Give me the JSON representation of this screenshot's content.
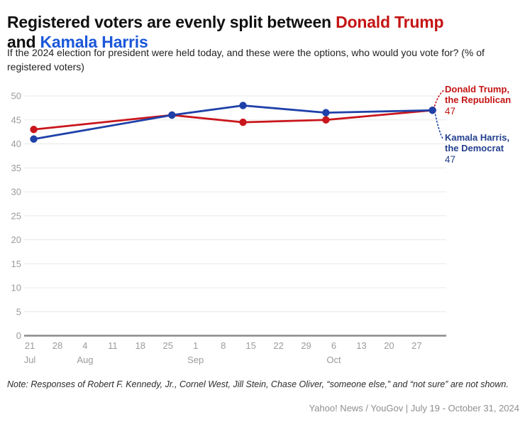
{
  "title": {
    "part1": "Registered voters are evenly split between ",
    "trump_name": "Donald Trump",
    "and_text": " and ",
    "harris_name": "Kamala Harris"
  },
  "subtitle": "If the 2024 election for president were held today, and these were the options, who would you vote for? (% of registered voters)",
  "colors": {
    "trump_line": "#c9161c",
    "harris_line": "#1e40a8",
    "title_red": "#c41414",
    "title_blue": "#1b57d9",
    "label_red": "#c41414",
    "label_blue": "#24408e",
    "gridline": "#e8e8e8",
    "axis": "#8a8a8a",
    "tick_text": "#9b9b9b"
  },
  "chart_data": {
    "type": "line",
    "title": "Registered voters are evenly split between Donald Trump and Kamala Harris",
    "xlabel": "",
    "ylabel": "% of registered voters",
    "ylim": [
      0,
      50
    ],
    "y_tick_step": 5,
    "y_tick_labels": [
      "0",
      "5",
      "10",
      "15",
      "20",
      "25",
      "30",
      "35",
      "40",
      "45",
      "50"
    ],
    "grid": true,
    "legend_position": "right-end-labels",
    "x_start": "2024-07-21",
    "x_ticks": [
      {
        "date": "2024-07-21",
        "label": "21",
        "month": "Jul"
      },
      {
        "date": "2024-07-28",
        "label": "28"
      },
      {
        "date": "2024-08-04",
        "label": "4",
        "month": "Aug"
      },
      {
        "date": "2024-08-11",
        "label": "11"
      },
      {
        "date": "2024-08-18",
        "label": "18"
      },
      {
        "date": "2024-08-25",
        "label": "25"
      },
      {
        "date": "2024-09-01",
        "label": "1",
        "month": "Sep"
      },
      {
        "date": "2024-09-08",
        "label": "8"
      },
      {
        "date": "2024-09-15",
        "label": "15"
      },
      {
        "date": "2024-09-22",
        "label": "22"
      },
      {
        "date": "2024-09-29",
        "label": "29"
      },
      {
        "date": "2024-10-06",
        "label": "6",
        "month": "Oct"
      },
      {
        "date": "2024-10-13",
        "label": "13"
      },
      {
        "date": "2024-10-20",
        "label": "20"
      },
      {
        "date": "2024-10-27",
        "label": "27"
      }
    ],
    "series": [
      {
        "name": "Donald Trump, the Republican",
        "color": "#c9161c",
        "dates": [
          "2024-07-22",
          "2024-08-26",
          "2024-09-13",
          "2024-10-04",
          "2024-10-31"
        ],
        "values": [
          43,
          46,
          44.5,
          45,
          47
        ]
      },
      {
        "name": "Kamala Harris, the Democrat",
        "color": "#1e40a8",
        "dates": [
          "2024-07-22",
          "2024-08-26",
          "2024-09-13",
          "2024-10-04",
          "2024-10-31"
        ],
        "values": [
          41,
          46,
          48,
          46.5,
          47
        ]
      }
    ]
  },
  "end_labels": {
    "trump": {
      "text": "Donald Trump, the Republican",
      "value": "47"
    },
    "harris": {
      "text": "Kamala Harris, the Democrat",
      "value": "47"
    }
  },
  "note": "Note: Responses of Robert F. Kennedy, Jr., Cornel West, Jill Stein, Chase Oliver, “someone else,” and “not sure” are not shown.",
  "attribution": "Yahoo! News / YouGov | July 19 - October 31, 2024"
}
